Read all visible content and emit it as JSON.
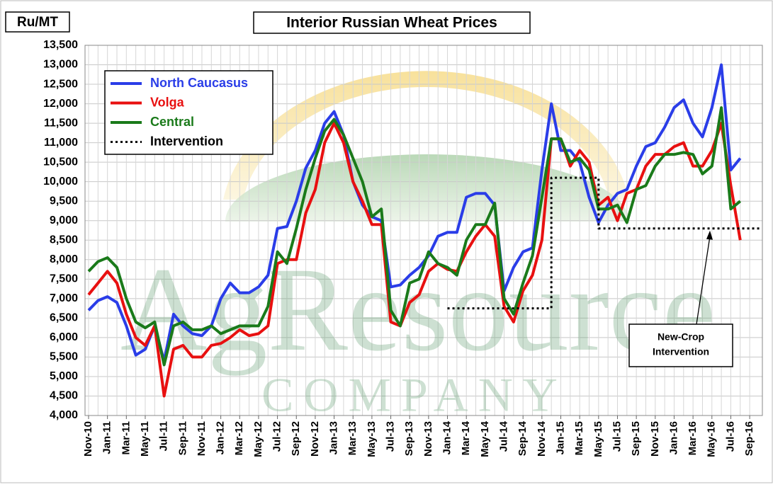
{
  "chart_data": {
    "type": "line",
    "title": "Interior Russian Wheat Prices",
    "y_label": "Ru/MT",
    "watermark": {
      "name": "AgResource",
      "tagline": "COMPANY"
    },
    "annotation": {
      "text": [
        "New-Crop",
        "Intervention"
      ],
      "points_to": 8800
    },
    "legend": "upper left",
    "grid": true,
    "ylim": [
      4000,
      13500
    ],
    "yticks": [
      {
        "value": 4000,
        "label": "4,000"
      },
      {
        "value": 4500,
        "label": "4,500"
      },
      {
        "value": 5000,
        "label": "5,000"
      },
      {
        "value": 5500,
        "label": "5,500"
      },
      {
        "value": 6000,
        "label": "6,000"
      },
      {
        "value": 6500,
        "label": "6,500"
      },
      {
        "value": 7000,
        "label": "7,000"
      },
      {
        "value": 7500,
        "label": "7,500"
      },
      {
        "value": 8000,
        "label": "8,000"
      },
      {
        "value": 8500,
        "label": "8,500"
      },
      {
        "value": 9000,
        "label": "9,000"
      },
      {
        "value": 9500,
        "label": "9,500"
      },
      {
        "value": 10000,
        "label": "10,000"
      },
      {
        "value": 10500,
        "label": "10,500"
      },
      {
        "value": 11000,
        "label": "11,000"
      },
      {
        "value": 11500,
        "label": "11,500"
      },
      {
        "value": 12000,
        "label": "12,000"
      },
      {
        "value": 12500,
        "label": "12,500"
      },
      {
        "value": 13000,
        "label": "13,000"
      },
      {
        "value": 13500,
        "label": "13,500"
      }
    ],
    "categories": [
      "Nov-10",
      null,
      "Jan-11",
      null,
      "Mar-11",
      null,
      "May-11",
      null,
      "Jul-11",
      null,
      "Sep-11",
      null,
      "Nov-11",
      null,
      "Jan-12",
      null,
      "Mar-12",
      null,
      "May-12",
      null,
      "Jul-12",
      null,
      "Sep-12",
      null,
      "Nov-12",
      null,
      "Jan-13",
      null,
      "Mar-13",
      null,
      "May-13",
      null,
      "Jul-13",
      null,
      "Sep-13",
      null,
      "Nov-13",
      null,
      "Jan-14",
      null,
      "Mar-14",
      null,
      "May-14",
      null,
      "Jul-14",
      null,
      "Sep-14",
      null,
      "Nov-14",
      null,
      "Jan-15",
      null,
      "Mar-15",
      null,
      "May-15",
      null,
      "Jul-15",
      null,
      "Sep-15",
      null,
      "Nov-15",
      null,
      "Jan-16",
      null,
      "Mar-16",
      null,
      "May-16",
      null,
      "Jul-16",
      null,
      "Sep-16"
    ],
    "series": [
      {
        "name": "North Caucasus",
        "color": "#2a3de8",
        "style": "solid",
        "values": [
          6700,
          6950,
          7050,
          6900,
          6300,
          5550,
          5700,
          6300,
          5400,
          6600,
          6300,
          6100,
          6050,
          6300,
          7000,
          7400,
          7150,
          7150,
          7300,
          7600,
          8800,
          8850,
          9500,
          10350,
          10800,
          11500,
          11800,
          11200,
          10000,
          9400,
          9100,
          9000,
          7300,
          7350,
          7600,
          7800,
          8100,
          8600,
          8700,
          8700,
          9600,
          9700,
          9700,
          9400,
          7200,
          7800,
          8200,
          8300,
          10300,
          12000,
          10800,
          10800,
          10500,
          9600,
          8950,
          9400,
          9700,
          9800,
          10400,
          10900,
          11000,
          11400,
          11900,
          12100,
          11500,
          11150,
          11900,
          13000,
          10300,
          10600,
          null
        ]
      },
      {
        "name": "Volga",
        "color": "#e81010",
        "style": "solid",
        "values": [
          7100,
          7400,
          7700,
          7400,
          6600,
          6000,
          5800,
          6300,
          4500,
          5700,
          5800,
          5500,
          5500,
          5800,
          5850,
          6000,
          6200,
          6050,
          6100,
          6300,
          7900,
          8000,
          8000,
          9200,
          9800,
          11000,
          11500,
          11000,
          10000,
          9500,
          8900,
          8900,
          6400,
          6300,
          6900,
          7100,
          7700,
          7900,
          7750,
          7700,
          8200,
          8600,
          8900,
          8600,
          6800,
          6400,
          7200,
          7600,
          8500,
          11100,
          11100,
          10400,
          10800,
          10500,
          9400,
          9600,
          9000,
          9700,
          9800,
          10400,
          10700,
          10700,
          10900,
          11000,
          10400,
          10400,
          10800,
          11500,
          9900,
          8500,
          null
        ]
      },
      {
        "name": "Central",
        "color": "#1a7a1a",
        "style": "solid",
        "values": [
          7700,
          7950,
          8050,
          7800,
          7000,
          6400,
          6250,
          6400,
          5300,
          6300,
          6400,
          6200,
          6200,
          6300,
          6100,
          6200,
          6300,
          6300,
          6300,
          6800,
          8200,
          7900,
          8800,
          9800,
          10600,
          11300,
          11600,
          11200,
          10600,
          10000,
          9100,
          9300,
          6700,
          6300,
          7400,
          7500,
          8200,
          7900,
          7800,
          7600,
          8500,
          8900,
          8900,
          9450,
          7000,
          6600,
          7400,
          8100,
          9600,
          11100,
          11100,
          10500,
          10600,
          10300,
          9300,
          9300,
          9400,
          8950,
          9800,
          9900,
          10400,
          10700,
          10700,
          10750,
          10700,
          10200,
          10400,
          11900,
          9300,
          9500,
          null
        ]
      },
      {
        "name": "Intervention",
        "color": "#000000",
        "style": "dotted",
        "step": true,
        "values": [
          null,
          null,
          null,
          null,
          null,
          null,
          null,
          null,
          null,
          null,
          null,
          null,
          null,
          null,
          null,
          null,
          null,
          null,
          null,
          null,
          null,
          null,
          null,
          null,
          null,
          null,
          null,
          null,
          null,
          null,
          null,
          null,
          null,
          null,
          null,
          null,
          null,
          null,
          6750,
          6750,
          6750,
          6750,
          6750,
          6750,
          6750,
          6750,
          6750,
          6750,
          6750,
          10100,
          10100,
          10100,
          10100,
          10100,
          8800,
          8800,
          8800,
          8800,
          8800,
          8800,
          8800,
          8800,
          8800,
          8800,
          8800,
          8800,
          8800,
          8800,
          8800,
          8800,
          8800
        ]
      }
    ]
  }
}
